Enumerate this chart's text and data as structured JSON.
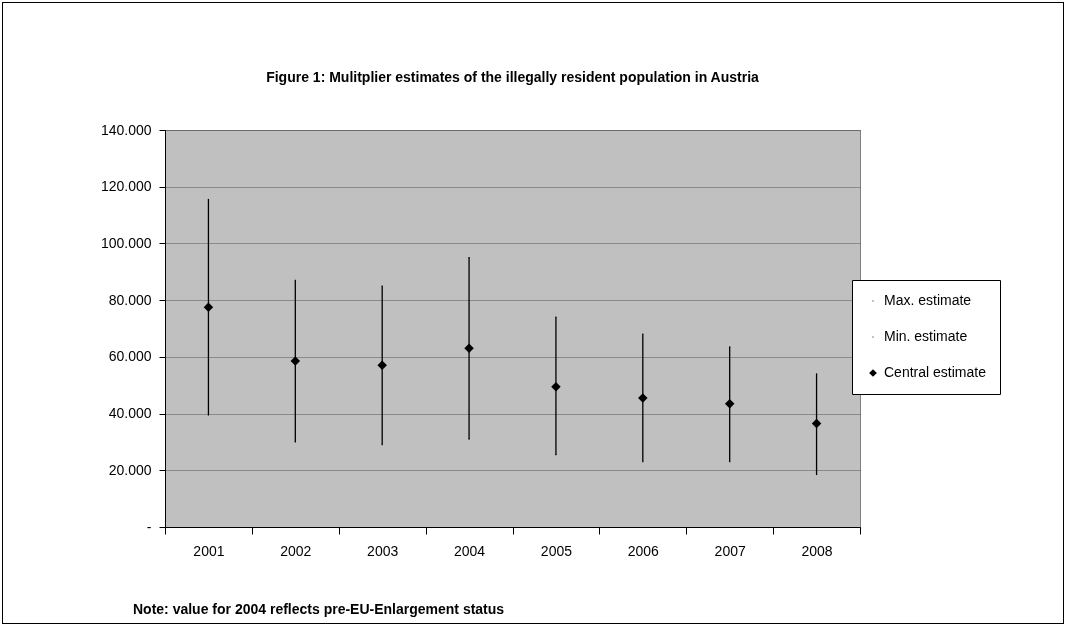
{
  "chart_data": {
    "type": "scatter",
    "title": "Figure 1: Mulitplier estimates of the illegally resident population in Austria",
    "categories": [
      "2001",
      "2002",
      "2003",
      "2004",
      "2005",
      "2006",
      "2007",
      "2008"
    ],
    "series": [
      {
        "name": "Max. estimate",
        "color": "#000000",
        "values": [
          115500,
          87000,
          85000,
          95000,
          74000,
          68000,
          63500,
          54000
        ]
      },
      {
        "name": "Min. estimate",
        "color": "#000000",
        "values": [
          39500,
          30000,
          29000,
          31000,
          25500,
          23000,
          23000,
          18500
        ]
      },
      {
        "name": "Central estimate",
        "color": "#000000",
        "marker": "diamond",
        "values": [
          77500,
          58500,
          57000,
          63000,
          49500,
          45500,
          43500,
          36500
        ]
      }
    ],
    "ylim": [
      0,
      140000
    ],
    "yticks": [
      {
        "value": 0,
        "label": "-"
      },
      {
        "value": 20000,
        "label": "20.000"
      },
      {
        "value": 40000,
        "label": "40.000"
      },
      {
        "value": 60000,
        "label": "60.000"
      },
      {
        "value": 80000,
        "label": "80.000"
      },
      {
        "value": 100000,
        "label": "100.000"
      },
      {
        "value": 120000,
        "label": "120.000"
      },
      {
        "value": 140000,
        "label": "140.000"
      }
    ],
    "grid": "y",
    "legend": "right",
    "annotations": [
      "Note: value for 2004 reflects pre-EU-Enlargement status"
    ]
  }
}
